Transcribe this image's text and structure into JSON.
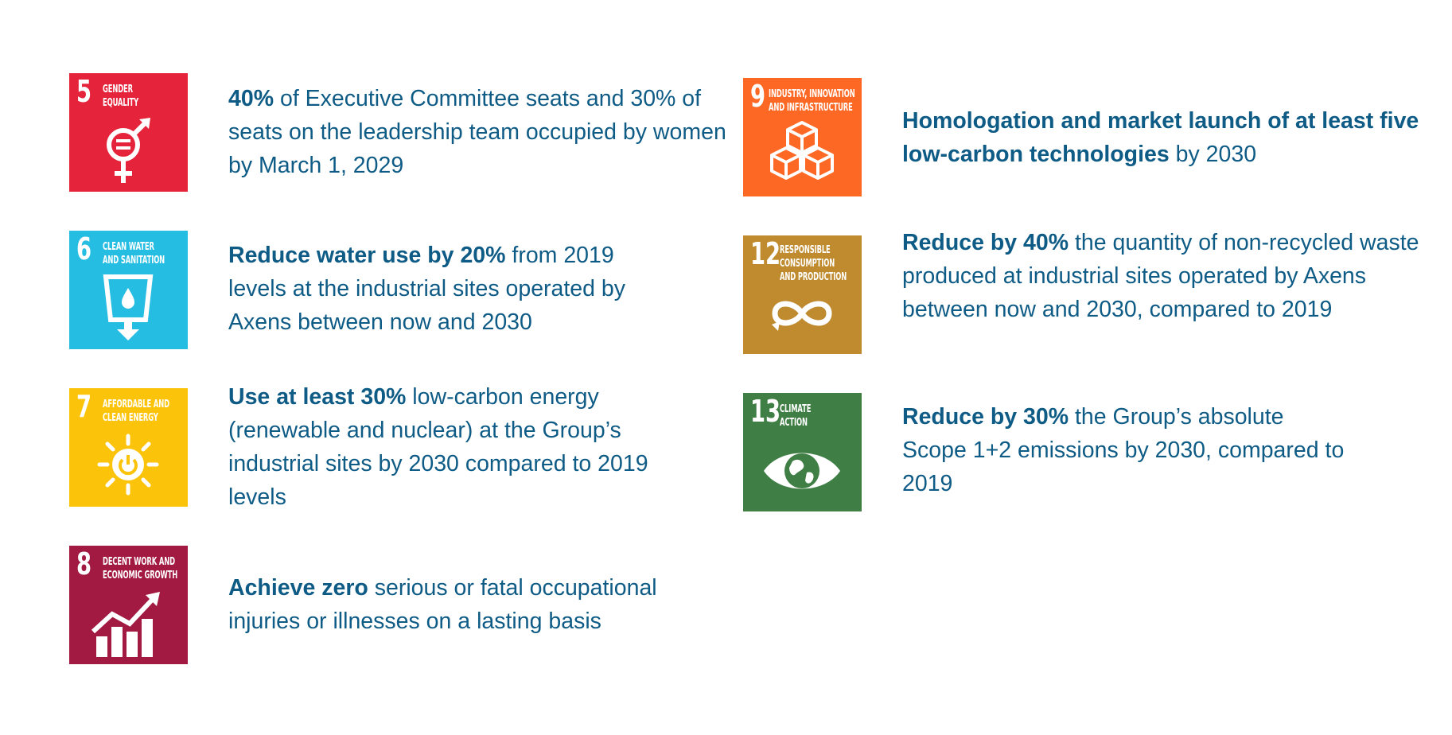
{
  "goals": [
    {
      "number": "5",
      "title": "GENDER\nEQUALITY",
      "icon": "gender-equality-icon",
      "color": "#e5243b",
      "target": [
        {
          "bold": "40%"
        },
        {
          "text": " of Executive Committee seats and 30% of seats on the leadership team occupied by women by March 1, 2029"
        }
      ]
    },
    {
      "number": "6",
      "title": "CLEAN WATER\nAND SANITATION",
      "icon": "clean-water-icon",
      "color": "#26bde2",
      "target": [
        {
          "bold": "Reduce water use by 20%"
        },
        {
          "text": " from 2019 levels at the industrial sites operated by Axens between now and 2030"
        }
      ]
    },
    {
      "number": "7",
      "title": "AFFORDABLE AND\nCLEAN ENERGY",
      "icon": "clean-energy-icon",
      "color": "#fcc30b",
      "target": [
        {
          "bold": "Use at least 30%"
        },
        {
          "text": " low-carbon energy (renewable and nuclear) at the Group’s industrial sites by 2030 compared to 2019 levels"
        }
      ]
    },
    {
      "number": "8",
      "title": "DECENT WORK AND\nECONOMIC GROWTH",
      "icon": "economic-growth-icon",
      "color": "#a21942",
      "target": [
        {
          "bold": "Achieve zero"
        },
        {
          "text": " serious or fatal occupational injuries or illnesses on a lasting basis"
        }
      ]
    },
    {
      "number": "9",
      "title": "INDUSTRY, INNOVATION\nAND INFRASTRUCTURE",
      "icon": "industry-innovation-icon",
      "color": "#fd6925",
      "target": [
        {
          "bold": "Homologation and market launch of at least five low-carbon technologies"
        },
        {
          "text": " by 2030"
        }
      ]
    },
    {
      "number": "12",
      "title": "RESPONSIBLE\nCONSUMPTION\nAND PRODUCTION",
      "icon": "responsible-consumption-icon",
      "color": "#bf8b2e",
      "target": [
        {
          "bold": "Reduce by 40%"
        },
        {
          "text": " the quantity of non-recycled waste produced at industrial sites operated by Axens between now and 2030, compared to 2019"
        }
      ]
    },
    {
      "number": "13",
      "title": "CLIMATE\nACTION",
      "icon": "climate-action-icon",
      "color": "#3f7e44",
      "target": [
        {
          "bold": "Reduce by 30%"
        },
        {
          "text": " the Group’s absolute Scope 1+2 emissions by 2030, compared to 2019"
        }
      ]
    }
  ]
}
